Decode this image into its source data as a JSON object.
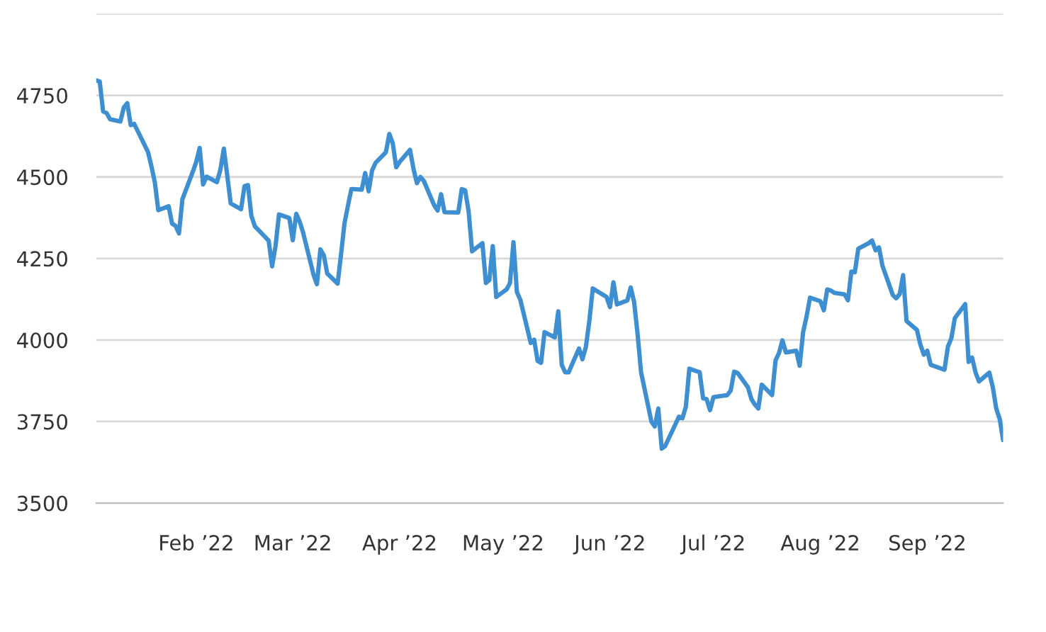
{
  "chart_data": {
    "type": "line",
    "xlim": [
      "2022-01-03",
      "2022-09-23"
    ],
    "xticks": [
      {
        "value": "2022-02-01",
        "label": "Feb ’22"
      },
      {
        "value": "2022-03-01",
        "label": "Mar ’22"
      },
      {
        "value": "2022-04-01",
        "label": "Apr ’22"
      },
      {
        "value": "2022-05-01",
        "label": "May ’22"
      },
      {
        "value": "2022-06-01",
        "label": "Jun ’22"
      },
      {
        "value": "2022-07-01",
        "label": "Jul ’22"
      },
      {
        "value": "2022-08-01",
        "label": "Aug ’22"
      },
      {
        "value": "2022-09-01",
        "label": "Sep ’22"
      }
    ],
    "ylim": [
      3500,
      5000
    ],
    "yticks": [
      3500,
      3750,
      4000,
      4250,
      4500,
      4750,
      {
        "value": 5000,
        "label": null
      }
    ],
    "grid": "y",
    "marker": "none",
    "line_style": "solid",
    "x": [
      "2022-01-03",
      "2022-01-04",
      "2022-01-05",
      "2022-01-06",
      "2022-01-07",
      "2022-01-10",
      "2022-01-11",
      "2022-01-12",
      "2022-01-13",
      "2022-01-14",
      "2022-01-18",
      "2022-01-19",
      "2022-01-20",
      "2022-01-21",
      "2022-01-24",
      "2022-01-25",
      "2022-01-26",
      "2022-01-27",
      "2022-01-28",
      "2022-01-31",
      "2022-02-01",
      "2022-02-02",
      "2022-02-03",
      "2022-02-04",
      "2022-02-07",
      "2022-02-08",
      "2022-02-09",
      "2022-02-10",
      "2022-02-11",
      "2022-02-14",
      "2022-02-15",
      "2022-02-16",
      "2022-02-17",
      "2022-02-18",
      "2022-02-22",
      "2022-02-23",
      "2022-02-24",
      "2022-02-25",
      "2022-02-28",
      "2022-03-01",
      "2022-03-02",
      "2022-03-03",
      "2022-03-04",
      "2022-03-07",
      "2022-03-08",
      "2022-03-09",
      "2022-03-10",
      "2022-03-11",
      "2022-03-14",
      "2022-03-15",
      "2022-03-16",
      "2022-03-17",
      "2022-03-18",
      "2022-03-21",
      "2022-03-22",
      "2022-03-23",
      "2022-03-24",
      "2022-03-25",
      "2022-03-28",
      "2022-03-29",
      "2022-03-30",
      "2022-03-31",
      "2022-04-01",
      "2022-04-04",
      "2022-04-05",
      "2022-04-06",
      "2022-04-07",
      "2022-04-08",
      "2022-04-11",
      "2022-04-12",
      "2022-04-13",
      "2022-04-14",
      "2022-04-18",
      "2022-04-19",
      "2022-04-20",
      "2022-04-21",
      "2022-04-22",
      "2022-04-25",
      "2022-04-26",
      "2022-04-27",
      "2022-04-28",
      "2022-04-29",
      "2022-05-02",
      "2022-05-03",
      "2022-05-04",
      "2022-05-05",
      "2022-05-06",
      "2022-05-09",
      "2022-05-10",
      "2022-05-11",
      "2022-05-12",
      "2022-05-13",
      "2022-05-16",
      "2022-05-17",
      "2022-05-18",
      "2022-05-19",
      "2022-05-20",
      "2022-05-23",
      "2022-05-24",
      "2022-05-25",
      "2022-05-26",
      "2022-05-27",
      "2022-05-31",
      "2022-06-01",
      "2022-06-02",
      "2022-06-03",
      "2022-06-06",
      "2022-06-07",
      "2022-06-08",
      "2022-06-09",
      "2022-06-10",
      "2022-06-13",
      "2022-06-14",
      "2022-06-15",
      "2022-06-16",
      "2022-06-17",
      "2022-06-21",
      "2022-06-22",
      "2022-06-23",
      "2022-06-24",
      "2022-06-27",
      "2022-06-28",
      "2022-06-29",
      "2022-06-30",
      "2022-07-01",
      "2022-07-05",
      "2022-07-06",
      "2022-07-07",
      "2022-07-08",
      "2022-07-11",
      "2022-07-12",
      "2022-07-13",
      "2022-07-14",
      "2022-07-15",
      "2022-07-18",
      "2022-07-19",
      "2022-07-20",
      "2022-07-21",
      "2022-07-22",
      "2022-07-25",
      "2022-07-26",
      "2022-07-27",
      "2022-07-28",
      "2022-07-29",
      "2022-08-01",
      "2022-08-02",
      "2022-08-03",
      "2022-08-04",
      "2022-08-05",
      "2022-08-08",
      "2022-08-09",
      "2022-08-10",
      "2022-08-11",
      "2022-08-12",
      "2022-08-15",
      "2022-08-16",
      "2022-08-17",
      "2022-08-18",
      "2022-08-19",
      "2022-08-22",
      "2022-08-23",
      "2022-08-24",
      "2022-08-25",
      "2022-08-26",
      "2022-08-29",
      "2022-08-30",
      "2022-08-31",
      "2022-09-01",
      "2022-09-02",
      "2022-09-06",
      "2022-09-07",
      "2022-09-08",
      "2022-09-09",
      "2022-09-12",
      "2022-09-13",
      "2022-09-14",
      "2022-09-15",
      "2022-09-16",
      "2022-09-19",
      "2022-09-20",
      "2022-09-21",
      "2022-09-22",
      "2022-09-23"
    ],
    "series": [
      {
        "color": "#3d8fd1",
        "values": [
          4796,
          4793,
          4701,
          4696,
          4677,
          4670,
          4713,
          4726,
          4659,
          4663,
          4577,
          4533,
          4483,
          4398,
          4410,
          4357,
          4350,
          4327,
          4432,
          4516,
          4546,
          4589,
          4477,
          4501,
          4484,
          4522,
          4587,
          4504,
          4419,
          4401,
          4472,
          4475,
          4380,
          4349,
          4305,
          4226,
          4288,
          4385,
          4374,
          4306,
          4387,
          4363,
          4329,
          4201,
          4171,
          4278,
          4260,
          4204,
          4173,
          4263,
          4358,
          4412,
          4463,
          4461,
          4512,
          4456,
          4520,
          4543,
          4576,
          4632,
          4603,
          4530,
          4546,
          4583,
          4525,
          4481,
          4500,
          4488,
          4413,
          4397,
          4447,
          4392,
          4391,
          4463,
          4459,
          4394,
          4272,
          4297,
          4175,
          4184,
          4288,
          4132,
          4155,
          4175,
          4300,
          4147,
          4123,
          3991,
          4001,
          3936,
          3930,
          4024,
          4008,
          4088,
          3924,
          3901,
          3901,
          3974,
          3941,
          3979,
          4058,
          4158,
          4132,
          4101,
          4177,
          4109,
          4121,
          4161,
          4116,
          4018,
          3901,
          3750,
          3735,
          3790,
          3667,
          3675,
          3765,
          3760,
          3796,
          3912,
          3901,
          3821,
          3819,
          3785,
          3825,
          3831,
          3845,
          3903,
          3899,
          3855,
          3819,
          3802,
          3790,
          3863,
          3831,
          3937,
          3960,
          3999,
          3962,
          3967,
          3921,
          4024,
          4072,
          4130,
          4119,
          4091,
          4155,
          4152,
          4145,
          4140,
          4122,
          4210,
          4208,
          4280,
          4297,
          4305,
          4275,
          4284,
          4228,
          4138,
          4128,
          4141,
          4199,
          4058,
          4031,
          3986,
          3955,
          3967,
          3924,
          3909,
          3980,
          4006,
          4067,
          4110,
          3933,
          3946,
          3901,
          3873,
          3900,
          3856,
          3790,
          3758,
          3693
        ]
      }
    ]
  }
}
